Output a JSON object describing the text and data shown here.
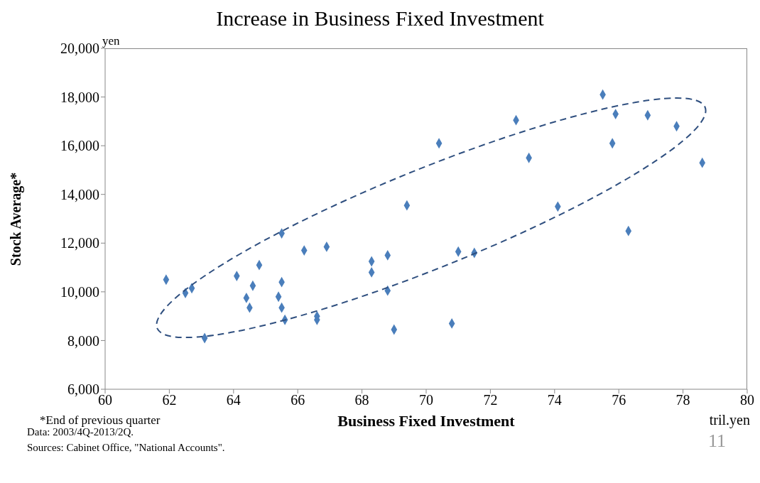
{
  "chart_data": {
    "type": "scatter",
    "title": "Increase in Business Fixed Investment",
    "xlabel": "Business Fixed Investment",
    "ylabel": "Stock Average*",
    "x": [
      61.9,
      62.5,
      62.7,
      63.1,
      64.1,
      64.4,
      64.5,
      64.6,
      64.8,
      65.5,
      65.4,
      65.5,
      65.5,
      65.6,
      66.2,
      66.6,
      66.6,
      66.9,
      68.3,
      68.3,
      68.8,
      68.8,
      69.0,
      69.4,
      70.4,
      70.8,
      71.0,
      71.5,
      72.8,
      73.2,
      74.1,
      75.5,
      75.9,
      75.8,
      76.3,
      76.9,
      77.8,
      78.6
    ],
    "values": [
      10500,
      9950,
      10150,
      8100,
      10650,
      9750,
      9350,
      10250,
      11100,
      12400,
      9800,
      10400,
      9350,
      8850,
      11700,
      9000,
      8850,
      11850,
      11250,
      10800,
      11500,
      10050,
      8450,
      13550,
      16100,
      8700,
      11650,
      11600,
      17050,
      15500,
      13500,
      18100,
      17300,
      16100,
      12500,
      17250,
      16800,
      15300
    ],
    "color": "#4a7ebb",
    "marker": "diamond",
    "xlim": [
      60,
      80
    ],
    "xticks": [
      60,
      62,
      64,
      66,
      68,
      70,
      72,
      74,
      76,
      78,
      80
    ],
    "ylim": [
      6000,
      20000
    ],
    "yticks": [
      {
        "value": 6000,
        "label": "6,000"
      },
      {
        "value": 8000,
        "label": "8,000"
      },
      {
        "value": 10000,
        "label": "10,000"
      },
      {
        "value": 12000,
        "label": "12,000"
      },
      {
        "value": 14000,
        "label": "14,000"
      },
      {
        "value": 16000,
        "label": "16,000"
      },
      {
        "value": 18000,
        "label": "18,000"
      },
      {
        "value": 20000,
        "label": "20,000"
      }
    ],
    "grid": false,
    "legend": false,
    "annotations": [
      "yen",
      "*End of previous quarter",
      "tril.yen",
      "Data: 2003/4Q-2013/2Q.",
      "Sources: Cabinet Office, \"National Accounts\".",
      "11"
    ]
  }
}
